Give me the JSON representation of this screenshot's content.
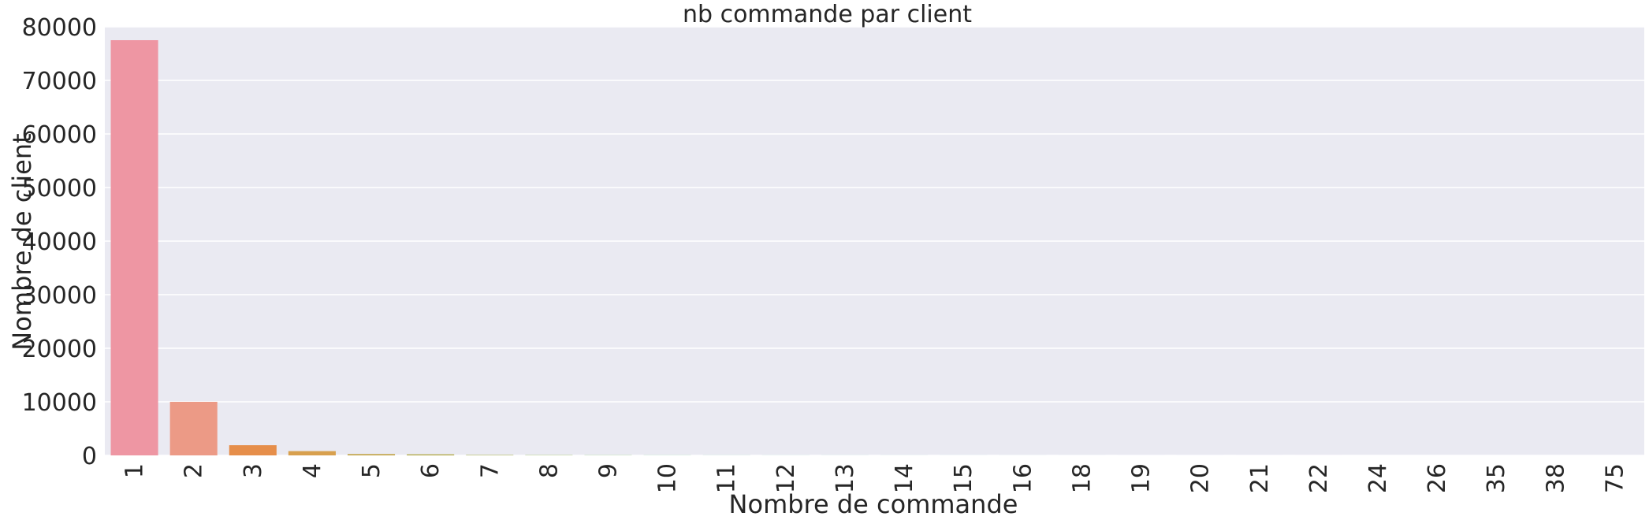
{
  "chart_data": {
    "type": "bar",
    "title": "nb commande par client",
    "xlabel": "Nombre de commande",
    "ylabel": "Nombre de client",
    "categories": [
      "1",
      "2",
      "3",
      "4",
      "5",
      "6",
      "7",
      "8",
      "9",
      "10",
      "11",
      "12",
      "13",
      "14",
      "15",
      "16",
      "18",
      "19",
      "20",
      "21",
      "22",
      "24",
      "26",
      "35",
      "38",
      "75"
    ],
    "values": [
      77500,
      10000,
      1900,
      800,
      250,
      200,
      80,
      50,
      30,
      20,
      15,
      12,
      10,
      8,
      6,
      5,
      4,
      3,
      3,
      2,
      2,
      1,
      1,
      1,
      1,
      1
    ],
    "colors": [
      "#ee96a3",
      "#ec9a86",
      "#e68e4a",
      "#d8a04e",
      "#c2a54a",
      "#b2ab4a",
      "#a4ae4a",
      "#8ab14a",
      "#62b249",
      "#4ab36b",
      "#4ab38a",
      "#4ab29b",
      "#4ab1a8",
      "#4ab0b4",
      "#4aafc0",
      "#4aadcc",
      "#4fa9da",
      "#71a0e4",
      "#8e97ec",
      "#a38cf0",
      "#b98bf0",
      "#cd88ec",
      "#e184e0",
      "#ec88ca",
      "#ee8cb7",
      "#ee91a8"
    ],
    "ylim": [
      0,
      80000
    ],
    "yticks": [
      0,
      10000,
      20000,
      30000,
      40000,
      50000,
      60000,
      70000,
      80000
    ],
    "grid": true,
    "background": "#eaeaf2"
  }
}
